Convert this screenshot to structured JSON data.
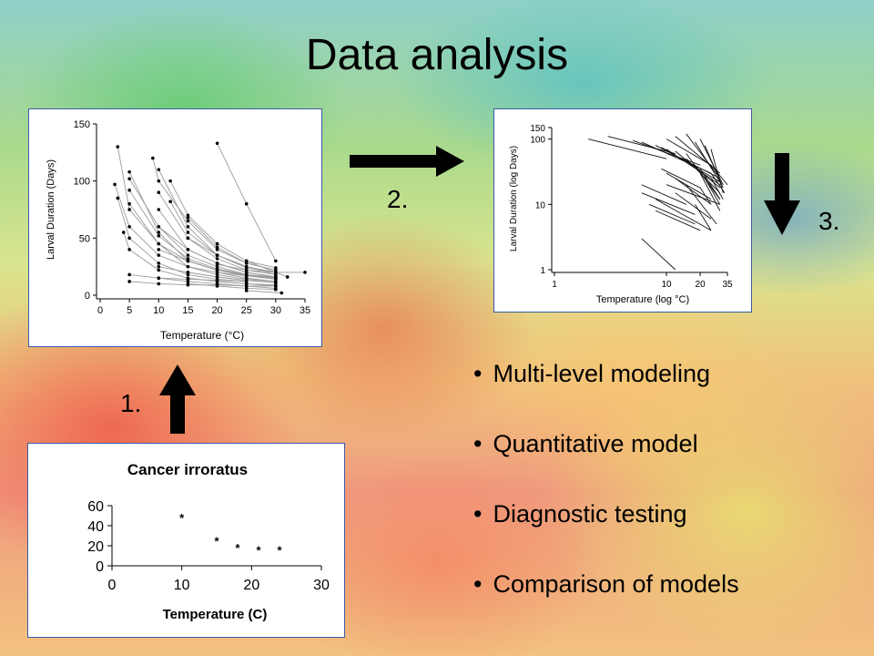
{
  "slide": {
    "title": "Data analysis",
    "step_labels": [
      "1.",
      "2.",
      "3."
    ],
    "bullets": [
      "Multi-level modeling",
      "Quantitative model",
      "Diagnostic testing",
      "Comparison of models"
    ],
    "colors": {
      "arrow": "#000000",
      "panel_border": "#3b5ba5"
    }
  },
  "chart_data": [
    {
      "type": "scatter",
      "title": "Cancer irroratus",
      "xlabel": "Temperature (C)",
      "ylabel": "",
      "xlim": [
        0,
        30
      ],
      "ylim": [
        0,
        60
      ],
      "xticks": [
        0,
        10,
        20,
        30
      ],
      "yticks": [
        0,
        20,
        40,
        60
      ],
      "x": [
        10,
        15,
        18,
        21,
        24
      ],
      "y": [
        48,
        25,
        18,
        16,
        16
      ],
      "grid": false,
      "legend": "none"
    },
    {
      "type": "line",
      "title": "",
      "xlabel": "Temperature  (°C)",
      "ylabel": "Larval Duration (Days)",
      "xlim": [
        0,
        35
      ],
      "ylim": [
        0,
        150
      ],
      "xticks": [
        0,
        5,
        10,
        15,
        20,
        25,
        30,
        35
      ],
      "yticks": [
        0,
        50,
        100,
        150
      ],
      "grid": false,
      "series": [
        {
          "x": [
            3,
            5,
            10,
            15,
            20,
            25,
            30
          ],
          "y": [
            130,
            75,
            45,
            30,
            22,
            18,
            15
          ]
        },
        {
          "x": [
            2.5,
            5,
            10,
            15,
            20,
            25
          ],
          "y": [
            97,
            60,
            35,
            25,
            20,
            17
          ]
        },
        {
          "x": [
            3,
            5,
            10,
            15,
            20,
            25
          ],
          "y": [
            85,
            50,
            28,
            18,
            14,
            12
          ]
        },
        {
          "x": [
            4,
            5,
            10,
            15,
            20,
            25,
            30
          ],
          "y": [
            55,
            40,
            22,
            15,
            12,
            10,
            9
          ]
        },
        {
          "x": [
            5,
            10,
            15,
            20,
            25,
            30
          ],
          "y": [
            108,
            55,
            30,
            22,
            18,
            16
          ]
        },
        {
          "x": [
            5,
            10,
            15,
            20,
            25,
            30
          ],
          "y": [
            102,
            60,
            40,
            28,
            20,
            16
          ]
        },
        {
          "x": [
            5,
            10,
            15,
            20,
            25,
            30
          ],
          "y": [
            92,
            52,
            32,
            23,
            18,
            15
          ]
        },
        {
          "x": [
            5,
            10,
            15,
            20,
            25,
            30
          ],
          "y": [
            80,
            45,
            25,
            18,
            14,
            12
          ]
        },
        {
          "x": [
            5,
            10,
            15,
            20,
            25
          ],
          "y": [
            18,
            15,
            14,
            13,
            12
          ]
        },
        {
          "x": [
            5,
            10,
            15,
            20,
            25,
            30
          ],
          "y": [
            12,
            10,
            9,
            9,
            8,
            8
          ]
        },
        {
          "x": [
            9,
            10,
            15,
            20,
            25,
            30
          ],
          "y": [
            120,
            100,
            65,
            40,
            28,
            22
          ]
        },
        {
          "x": [
            10,
            15,
            20,
            25,
            30
          ],
          "y": [
            110,
            60,
            35,
            25,
            20
          ]
        },
        {
          "x": [
            10,
            15,
            20,
            25,
            30
          ],
          "y": [
            90,
            50,
            32,
            22,
            18
          ]
        },
        {
          "x": [
            10,
            15,
            20,
            25,
            30
          ],
          "y": [
            75,
            40,
            28,
            20,
            16
          ]
        },
        {
          "x": [
            10,
            15,
            20,
            25,
            30
          ],
          "y": [
            60,
            35,
            25,
            18,
            15
          ]
        },
        {
          "x": [
            10,
            15,
            20,
            25,
            30
          ],
          "y": [
            40,
            30,
            22,
            17,
            14
          ]
        },
        {
          "x": [
            10,
            15,
            20,
            25,
            30
          ],
          "y": [
            25,
            20,
            16,
            13,
            11
          ]
        },
        {
          "x": [
            10,
            15,
            20,
            25
          ],
          "y": [
            15,
            12,
            10,
            8
          ]
        },
        {
          "x": [
            12,
            15,
            20,
            25,
            30
          ],
          "y": [
            100,
            70,
            45,
            30,
            24
          ]
        },
        {
          "x": [
            12,
            15,
            20,
            25
          ],
          "y": [
            82,
            55,
            35,
            25
          ]
        },
        {
          "x": [
            15,
            20,
            25,
            30
          ],
          "y": [
            68,
            42,
            28,
            22
          ]
        },
        {
          "x": [
            15,
            20,
            25,
            30
          ],
          "y": [
            50,
            35,
            24,
            20
          ]
        },
        {
          "x": [
            15,
            20,
            25,
            30
          ],
          "y": [
            30,
            22,
            18,
            15
          ]
        },
        {
          "x": [
            15,
            20,
            25,
            30
          ],
          "y": [
            20,
            16,
            13,
            11
          ]
        },
        {
          "x": [
            15,
            20,
            25,
            30
          ],
          "y": [
            10,
            8,
            6,
            5
          ]
        },
        {
          "x": [
            20,
            25,
            30
          ],
          "y": [
            35,
            25,
            18
          ]
        },
        {
          "x": [
            20,
            25,
            30,
            35
          ],
          "y": [
            27,
            22,
            20,
            20
          ]
        },
        {
          "x": [
            20,
            25,
            30
          ],
          "y": [
            20,
            15,
            12
          ]
        },
        {
          "x": [
            20,
            25,
            30
          ],
          "y": [
            12,
            10,
            8
          ]
        },
        {
          "x": [
            20,
            25,
            30
          ],
          "y": [
            133,
            80,
            30
          ]
        },
        {
          "x": [
            25,
            30,
            32
          ],
          "y": [
            30,
            20,
            16
          ]
        },
        {
          "x": [
            25,
            30
          ],
          "y": [
            18,
            14
          ]
        },
        {
          "x": [
            25,
            30
          ],
          "y": [
            8,
            6
          ]
        },
        {
          "x": [
            25,
            31
          ],
          "y": [
            4,
            2
          ]
        }
      ]
    },
    {
      "type": "line",
      "title": "",
      "xlabel": "Temperature  (log °C)",
      "ylabel": "Larval Duration (log Days)",
      "xscale": "log",
      "yscale": "log",
      "xlim": [
        1,
        35
      ],
      "ylim": [
        1,
        150
      ],
      "xticks": [
        1,
        10,
        20,
        35
      ],
      "yticks": [
        1,
        10,
        100,
        150
      ],
      "grid": false,
      "series": [
        {
          "x": [
            2,
            10
          ],
          "y": [
            100,
            50
          ]
        },
        {
          "x": [
            3,
            12
          ],
          "y": [
            110,
            60
          ]
        },
        {
          "x": [
            5,
            20
          ],
          "y": [
            95,
            40
          ]
        },
        {
          "x": [
            6,
            25
          ],
          "y": [
            90,
            30
          ]
        },
        {
          "x": [
            8,
            30
          ],
          "y": [
            80,
            25
          ]
        },
        {
          "x": [
            9,
            30
          ],
          "y": [
            75,
            22
          ]
        },
        {
          "x": [
            10,
            30
          ],
          "y": [
            70,
            20
          ]
        },
        {
          "x": [
            12,
            30
          ],
          "y": [
            65,
            18
          ]
        },
        {
          "x": [
            10,
            25
          ],
          "y": [
            100,
            40
          ]
        },
        {
          "x": [
            12,
            30
          ],
          "y": [
            110,
            30
          ]
        },
        {
          "x": [
            15,
            30
          ],
          "y": [
            120,
            25
          ]
        },
        {
          "x": [
            18,
            30
          ],
          "y": [
            90,
            22
          ]
        },
        {
          "x": [
            20,
            32
          ],
          "y": [
            100,
            20
          ]
        },
        {
          "x": [
            22,
            32
          ],
          "y": [
            80,
            18
          ]
        },
        {
          "x": [
            25,
            32
          ],
          "y": [
            70,
            15
          ]
        },
        {
          "x": [
            25,
            35
          ],
          "y": [
            40,
            20
          ]
        },
        {
          "x": [
            15,
            30
          ],
          "y": [
            50,
            15
          ]
        },
        {
          "x": [
            18,
            30
          ],
          "y": [
            40,
            12
          ]
        },
        {
          "x": [
            20,
            30
          ],
          "y": [
            35,
            12
          ]
        },
        {
          "x": [
            9,
            20
          ],
          "y": [
            35,
            18
          ]
        },
        {
          "x": [
            10,
            25
          ],
          "y": [
            30,
            12
          ]
        },
        {
          "x": [
            12,
            25
          ],
          "y": [
            25,
            10
          ]
        },
        {
          "x": [
            10,
            30
          ],
          "y": [
            20,
            10
          ]
        },
        {
          "x": [
            6,
            15
          ],
          "y": [
            20,
            10
          ]
        },
        {
          "x": [
            6,
            18
          ],
          "y": [
            15,
            7
          ]
        },
        {
          "x": [
            7,
            18
          ],
          "y": [
            10,
            5
          ]
        },
        {
          "x": [
            8,
            20
          ],
          "y": [
            8,
            4
          ]
        },
        {
          "x": [
            8,
            25
          ],
          "y": [
            12,
            4
          ]
        },
        {
          "x": [
            12,
            25
          ],
          "y": [
            15,
            6
          ]
        },
        {
          "x": [
            15,
            28
          ],
          "y": [
            20,
            5
          ]
        },
        {
          "x": [
            18,
            25
          ],
          "y": [
            10,
            4
          ]
        },
        {
          "x": [
            20,
            30
          ],
          "y": [
            30,
            8
          ]
        },
        {
          "x": [
            22,
            30
          ],
          "y": [
            25,
            10
          ]
        },
        {
          "x": [
            25,
            33
          ],
          "y": [
            30,
            15
          ]
        },
        {
          "x": [
            25,
            32
          ],
          "y": [
            25,
            12
          ]
        },
        {
          "x": [
            15,
            30
          ],
          "y": [
            60,
            12
          ]
        },
        {
          "x": [
            6,
            12
          ],
          "y": [
            3,
            1
          ]
        },
        {
          "x": [
            20,
            25
          ],
          "y": [
            18,
            10
          ]
        }
      ]
    }
  ]
}
